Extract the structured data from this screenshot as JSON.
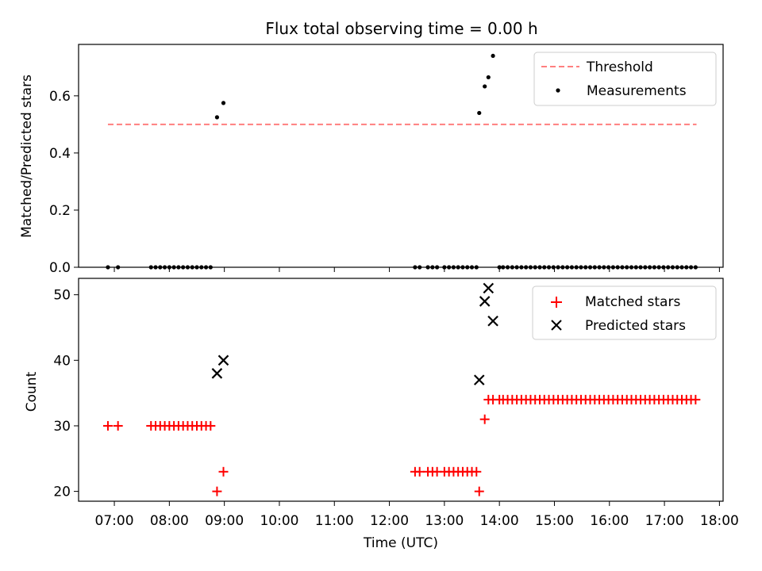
{
  "figure": {
    "title": "Flux total observing time = 0.00 h",
    "xlabel": "Time (UTC)"
  },
  "colors": {
    "threshold": "#ff7f7f",
    "measurements": "#000000",
    "matched": "#ff0000",
    "predicted": "#000000"
  },
  "chart_data": [
    {
      "type": "scatter",
      "ylabel": "Matched/Predicted stars",
      "xlim": [
        "06:21",
        "18:04"
      ],
      "ylim": [
        0,
        0.78
      ],
      "yticks": [
        0.0,
        0.2,
        0.4,
        0.6
      ],
      "ytick_labels": [
        "0.0",
        "0.2",
        "0.4",
        "0.6"
      ],
      "grid": false,
      "legend_position": "top-right",
      "threshold": {
        "name": "Threshold",
        "y": 0.5,
        "x_start": "06:53",
        "x_end": "17:35"
      },
      "series": [
        {
          "name": "Measurements",
          "points": [
            [
              "06:53",
              0
            ],
            [
              "07:04",
              0
            ],
            [
              "07:40",
              0
            ],
            [
              "07:45",
              0
            ],
            [
              "07:50",
              0
            ],
            [
              "07:55",
              0
            ],
            [
              "08:00",
              0
            ],
            [
              "08:05",
              0
            ],
            [
              "08:10",
              0
            ],
            [
              "08:15",
              0
            ],
            [
              "08:20",
              0
            ],
            [
              "08:25",
              0
            ],
            [
              "08:30",
              0
            ],
            [
              "08:35",
              0
            ],
            [
              "08:40",
              0
            ],
            [
              "08:45",
              0
            ],
            [
              "08:52",
              0.525
            ],
            [
              "08:59",
              0.575
            ],
            [
              "12:28",
              0
            ],
            [
              "12:33",
              0
            ],
            [
              "12:42",
              0
            ],
            [
              "12:47",
              0
            ],
            [
              "12:52",
              0
            ],
            [
              "13:00",
              0
            ],
            [
              "13:05",
              0
            ],
            [
              "13:10",
              0
            ],
            [
              "13:15",
              0
            ],
            [
              "13:20",
              0
            ],
            [
              "13:25",
              0
            ],
            [
              "13:30",
              0
            ],
            [
              "13:35",
              0
            ],
            [
              "13:38",
              0.54
            ],
            [
              "13:44",
              0.633
            ],
            [
              "13:48",
              0.665
            ],
            [
              "13:53",
              0.74
            ],
            [
              "14:00",
              0
            ],
            [
              "14:04",
              0
            ],
            [
              "14:09",
              0
            ],
            [
              "14:14",
              0
            ],
            [
              "14:19",
              0
            ],
            [
              "14:24",
              0
            ],
            [
              "14:29",
              0
            ],
            [
              "14:34",
              0
            ],
            [
              "14:39",
              0
            ],
            [
              "14:44",
              0
            ],
            [
              "14:49",
              0
            ],
            [
              "14:54",
              0
            ],
            [
              "14:59",
              0
            ],
            [
              "15:04",
              0
            ],
            [
              "15:09",
              0
            ],
            [
              "15:14",
              0
            ],
            [
              "15:19",
              0
            ],
            [
              "15:24",
              0
            ],
            [
              "15:29",
              0
            ],
            [
              "15:34",
              0
            ],
            [
              "15:39",
              0
            ],
            [
              "15:44",
              0
            ],
            [
              "15:49",
              0
            ],
            [
              "15:54",
              0
            ],
            [
              "15:59",
              0
            ],
            [
              "16:04",
              0
            ],
            [
              "16:09",
              0
            ],
            [
              "16:14",
              0
            ],
            [
              "16:19",
              0
            ],
            [
              "16:24",
              0
            ],
            [
              "16:29",
              0
            ],
            [
              "16:34",
              0
            ],
            [
              "16:39",
              0
            ],
            [
              "16:44",
              0
            ],
            [
              "16:49",
              0
            ],
            [
              "16:54",
              0
            ],
            [
              "16:59",
              0
            ],
            [
              "17:04",
              0
            ],
            [
              "17:09",
              0
            ],
            [
              "17:14",
              0
            ],
            [
              "17:19",
              0
            ],
            [
              "17:24",
              0
            ],
            [
              "17:29",
              0
            ],
            [
              "17:34",
              0
            ]
          ]
        }
      ]
    },
    {
      "type": "scatter",
      "ylabel": "Count",
      "xlabel": "Time (UTC)",
      "xlim": [
        "06:21",
        "18:04"
      ],
      "ylim": [
        18.5,
        52.5
      ],
      "yticks": [
        20,
        30,
        40,
        50
      ],
      "ytick_labels": [
        "20",
        "30",
        "40",
        "50"
      ],
      "xticks": [
        "07:00",
        "08:00",
        "09:00",
        "10:00",
        "11:00",
        "12:00",
        "13:00",
        "14:00",
        "15:00",
        "16:00",
        "17:00",
        "18:00"
      ],
      "xtick_labels": [
        "07:00",
        "08:00",
        "09:00",
        "10:00",
        "11:00",
        "12:00",
        "13:00",
        "14:00",
        "15:00",
        "16:00",
        "17:00",
        "18:00"
      ],
      "grid": false,
      "legend_position": "top-right",
      "series": [
        {
          "name": "Matched stars",
          "points": [
            [
              "06:53",
              30
            ],
            [
              "07:04",
              30
            ],
            [
              "07:40",
              30
            ],
            [
              "07:45",
              30
            ],
            [
              "07:50",
              30
            ],
            [
              "07:55",
              30
            ],
            [
              "08:00",
              30
            ],
            [
              "08:05",
              30
            ],
            [
              "08:10",
              30
            ],
            [
              "08:15",
              30
            ],
            [
              "08:20",
              30
            ],
            [
              "08:25",
              30
            ],
            [
              "08:30",
              30
            ],
            [
              "08:35",
              30
            ],
            [
              "08:40",
              30
            ],
            [
              "08:45",
              30
            ],
            [
              "08:52",
              20
            ],
            [
              "08:59",
              23
            ],
            [
              "12:28",
              23
            ],
            [
              "12:33",
              23
            ],
            [
              "12:42",
              23
            ],
            [
              "12:47",
              23
            ],
            [
              "12:52",
              23
            ],
            [
              "13:00",
              23
            ],
            [
              "13:05",
              23
            ],
            [
              "13:10",
              23
            ],
            [
              "13:15",
              23
            ],
            [
              "13:20",
              23
            ],
            [
              "13:25",
              23
            ],
            [
              "13:30",
              23
            ],
            [
              "13:35",
              23
            ],
            [
              "13:38",
              20
            ],
            [
              "13:44",
              31
            ],
            [
              "13:48",
              34
            ],
            [
              "13:53",
              34
            ],
            [
              "14:00",
              34
            ],
            [
              "14:04",
              34
            ],
            [
              "14:09",
              34
            ],
            [
              "14:14",
              34
            ],
            [
              "14:19",
              34
            ],
            [
              "14:24",
              34
            ],
            [
              "14:29",
              34
            ],
            [
              "14:34",
              34
            ],
            [
              "14:39",
              34
            ],
            [
              "14:44",
              34
            ],
            [
              "14:49",
              34
            ],
            [
              "14:54",
              34
            ],
            [
              "14:59",
              34
            ],
            [
              "15:04",
              34
            ],
            [
              "15:09",
              34
            ],
            [
              "15:14",
              34
            ],
            [
              "15:19",
              34
            ],
            [
              "15:24",
              34
            ],
            [
              "15:29",
              34
            ],
            [
              "15:34",
              34
            ],
            [
              "15:39",
              34
            ],
            [
              "15:44",
              34
            ],
            [
              "15:49",
              34
            ],
            [
              "15:54",
              34
            ],
            [
              "15:59",
              34
            ],
            [
              "16:04",
              34
            ],
            [
              "16:09",
              34
            ],
            [
              "16:14",
              34
            ],
            [
              "16:19",
              34
            ],
            [
              "16:24",
              34
            ],
            [
              "16:29",
              34
            ],
            [
              "16:34",
              34
            ],
            [
              "16:39",
              34
            ],
            [
              "16:44",
              34
            ],
            [
              "16:49",
              34
            ],
            [
              "16:54",
              34
            ],
            [
              "16:59",
              34
            ],
            [
              "17:04",
              34
            ],
            [
              "17:09",
              34
            ],
            [
              "17:14",
              34
            ],
            [
              "17:19",
              34
            ],
            [
              "17:24",
              34
            ],
            [
              "17:29",
              34
            ],
            [
              "17:34",
              34
            ]
          ]
        },
        {
          "name": "Predicted stars",
          "points": [
            [
              "08:52",
              38
            ],
            [
              "08:59",
              40
            ],
            [
              "13:38",
              37
            ],
            [
              "13:44",
              49
            ],
            [
              "13:48",
              51
            ],
            [
              "13:53",
              46
            ]
          ]
        }
      ]
    }
  ]
}
